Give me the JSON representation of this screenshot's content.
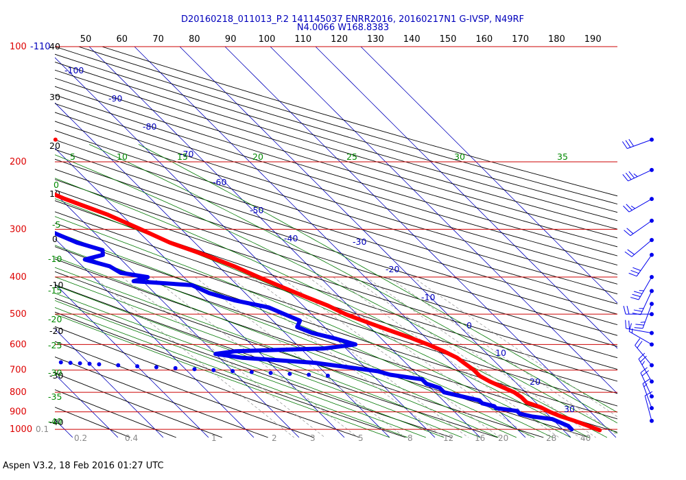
{
  "chart_data": {
    "type": "skew-t",
    "title_line1": "D20160218_011013_P.2 141145037 ENRR2016, 20160217N1 G-IVSP, N49RF",
    "title_line2": "N4.0066 W168.8383",
    "footer": "Aspen V3.2, 18 Feb 2016  01:27 UTC",
    "pressure_ticks": [
      {
        "p": 100,
        "label": "100"
      },
      {
        "p": 200,
        "label": "200"
      },
      {
        "p": 300,
        "label": "300"
      },
      {
        "p": 400,
        "label": "400"
      },
      {
        "p": 500,
        "label": "500"
      },
      {
        "p": 600,
        "label": "600"
      },
      {
        "p": 700,
        "label": "700"
      },
      {
        "p": 800,
        "label": "800"
      },
      {
        "p": 900,
        "label": "900"
      },
      {
        "p": 1000,
        "label": "1000"
      }
    ],
    "top_scale_labels": [
      "50",
      "60",
      "70",
      "80",
      "90",
      "100",
      "110",
      "120",
      "130",
      "140",
      "150",
      "160",
      "170",
      "180",
      "190"
    ],
    "top_left_label": "-110",
    "temperature_labels": [
      "-100",
      "-90",
      "-80",
      "-70",
      "-60",
      "-50",
      "-40",
      "-30",
      "-20",
      "-10",
      "0",
      "10",
      "20",
      "30",
      "40"
    ],
    "height_km_labels": [
      "40",
      "30",
      "20",
      "10",
      "0",
      "-10",
      "-20",
      "-30",
      "-40"
    ],
    "height_km_labels_alt": [
      "0",
      "-5",
      "-10",
      "-15",
      "-20",
      "-25",
      "-30",
      "-35",
      "-40"
    ],
    "mixing_ratio_labels_top": [
      "5",
      "10",
      "15",
      "20",
      "25",
      "30",
      "35"
    ],
    "mixing_ratio_labels_bottom": [
      "0.1",
      "0.2",
      "0.4",
      "1",
      "2",
      "3",
      "5",
      "8",
      "12",
      "16",
      "20",
      "28",
      "40"
    ],
    "temperature_profile": [
      [
        175,
        -53.0
      ],
      [
        185,
        -54.0
      ],
      [
        200,
        -50.5
      ],
      [
        220,
        -45.5
      ],
      [
        250,
        -39.0
      ],
      [
        275,
        -33.0
      ],
      [
        300,
        -29.0
      ],
      [
        325,
        -25.5
      ],
      [
        350,
        -20.5
      ],
      [
        375,
        -16.5
      ],
      [
        400,
        -13.5
      ],
      [
        425,
        -10.5
      ],
      [
        450,
        -7.5
      ],
      [
        475,
        -4.5
      ],
      [
        500,
        -2.5
      ],
      [
        525,
        0.5
      ],
      [
        550,
        3.5
      ],
      [
        575,
        6.5
      ],
      [
        600,
        9.0
      ],
      [
        625,
        11.0
      ],
      [
        650,
        12.5
      ],
      [
        675,
        13.0
      ],
      [
        700,
        13.5
      ],
      [
        725,
        13.5
      ],
      [
        750,
        14.5
      ],
      [
        775,
        16.0
      ],
      [
        800,
        17.5
      ],
      [
        825,
        18.0
      ],
      [
        850,
        18.0
      ],
      [
        875,
        20.0
      ],
      [
        900,
        21.0
      ],
      [
        925,
        22.5
      ],
      [
        950,
        24.5
      ],
      [
        980,
        26.5
      ],
      [
        1005,
        28.0
      ]
    ],
    "dewpoint_profile": [
      [
        210,
        -72.0
      ],
      [
        230,
        -68.0
      ],
      [
        250,
        -63.0
      ],
      [
        275,
        -57.0
      ],
      [
        300,
        -50.0
      ],
      [
        325,
        -46.0
      ],
      [
        340,
        -42.0
      ],
      [
        350,
        -43.0
      ],
      [
        360,
        -48.0
      ],
      [
        375,
        -44.0
      ],
      [
        390,
        -43.0
      ],
      [
        400,
        -38.0
      ],
      [
        410,
        -42.0
      ],
      [
        420,
        -30.0
      ],
      [
        440,
        -28.0
      ],
      [
        460,
        -24.0
      ],
      [
        480,
        -18.0
      ],
      [
        500,
        -16.0
      ],
      [
        520,
        -14.0
      ],
      [
        540,
        -16.0
      ],
      [
        560,
        -14.0
      ],
      [
        580,
        -10.0
      ],
      [
        600,
        -7.0
      ],
      [
        615,
        -15.0
      ],
      [
        625,
        -35.0
      ],
      [
        635,
        -40.0
      ],
      [
        650,
        -35.0
      ],
      [
        670,
        -20.0
      ],
      [
        690,
        -13.0
      ],
      [
        705,
        -8.0
      ],
      [
        720,
        -6.0
      ],
      [
        740,
        0.0
      ],
      [
        760,
        0.0
      ],
      [
        780,
        2.0
      ],
      [
        800,
        2.0
      ],
      [
        820,
        5.0
      ],
      [
        840,
        8.0
      ],
      [
        855,
        8.0
      ],
      [
        870,
        10.0
      ],
      [
        880,
        10.0
      ],
      [
        895,
        14.0
      ],
      [
        910,
        14.0
      ],
      [
        925,
        16.0
      ],
      [
        940,
        20.0
      ],
      [
        960,
        21.0
      ],
      [
        980,
        22.0
      ],
      [
        1000,
        22.0
      ]
    ],
    "dewpoint_scatter": [
      [
        655,
        -86
      ],
      [
        658,
        -84
      ],
      [
        660,
        -82
      ],
      [
        662,
        -80
      ],
      [
        665,
        -78
      ],
      [
        668,
        -76
      ],
      [
        670,
        -74
      ],
      [
        672,
        -72
      ],
      [
        674,
        -70
      ],
      [
        676,
        -68
      ],
      [
        680,
        -64
      ],
      [
        684,
        -60
      ],
      [
        688,
        -56
      ],
      [
        692,
        -52
      ],
      [
        696,
        -48
      ],
      [
        700,
        -44
      ],
      [
        704,
        -40
      ],
      [
        708,
        -36
      ],
      [
        712,
        -32
      ],
      [
        716,
        -28
      ],
      [
        720,
        -24
      ],
      [
        724,
        -20
      ]
    ],
    "surface_marker": [
      175,
      -28.0
    ],
    "wind_barbs": [
      {
        "p": 175,
        "dir": 250,
        "spd": 30
      },
      {
        "p": 210,
        "dir": 245,
        "spd": 35
      },
      {
        "p": 250,
        "dir": 240,
        "spd": 25
      },
      {
        "p": 285,
        "dir": 235,
        "spd": 20
      },
      {
        "p": 320,
        "dir": 230,
        "spd": 20
      },
      {
        "p": 350,
        "dir": 215,
        "spd": 30
      },
      {
        "p": 400,
        "dir": 210,
        "spd": 35
      },
      {
        "p": 435,
        "dir": 205,
        "spd": 25
      },
      {
        "p": 470,
        "dir": 200,
        "spd": 25
      },
      {
        "p": 500,
        "dir": 270,
        "spd": 20
      },
      {
        "p": 560,
        "dir": 280,
        "spd": 20
      },
      {
        "p": 600,
        "dir": 300,
        "spd": 15
      },
      {
        "p": 680,
        "dir": 320,
        "spd": 20
      },
      {
        "p": 750,
        "dir": 330,
        "spd": 25
      },
      {
        "p": 820,
        "dir": 335,
        "spd": 20
      },
      {
        "p": 880,
        "dir": 340,
        "spd": 15
      },
      {
        "p": 950,
        "dir": 345,
        "spd": 10
      }
    ],
    "colors": {
      "temperature": "#ff0000",
      "dewpoint": "#0000ee",
      "isobar": "#cc0000",
      "isotherm": "#0000bb",
      "dry_adiabat": "#000000",
      "moist_adiabat": "#007700",
      "mixing_ratio": "#9b9b9b",
      "pressure_label": "#dd0000",
      "temp_label": "#0000bb",
      "km_label": "#000000",
      "green_label": "#008800",
      "title": "#0000bb"
    }
  }
}
